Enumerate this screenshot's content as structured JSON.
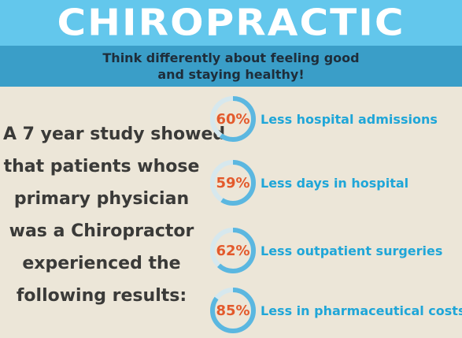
{
  "header": {
    "title": "CHIROPRACTIC",
    "subtitle_line1": "Think differently about feeling good",
    "subtitle_line2": "and staying healthy!"
  },
  "intro_lines": [
    "A 7 year study showed",
    "that patients whose",
    "primary physician",
    "was a Chiropractor",
    "experienced the",
    "following results:"
  ],
  "stats": [
    {
      "percent": "60%",
      "value": 60,
      "label": "Less hospital admissions"
    },
    {
      "percent": "59%",
      "value": 59,
      "label": "Less days in hospital"
    },
    {
      "percent": "62%",
      "value": 62,
      "label": "Less outpatient surgeries"
    },
    {
      "percent": "85%",
      "value": 85,
      "label": "Less in pharmaceutical costs"
    }
  ],
  "colors": {
    "title_bar": "#63c7ec",
    "subtitle_bar": "#3a9ec8",
    "background": "#ece6d8",
    "percent_text": "#e35a2c",
    "label_text": "#1fa6d8",
    "ring_filled": "#5bb7e0",
    "ring_track": "#d6e8ee"
  }
}
